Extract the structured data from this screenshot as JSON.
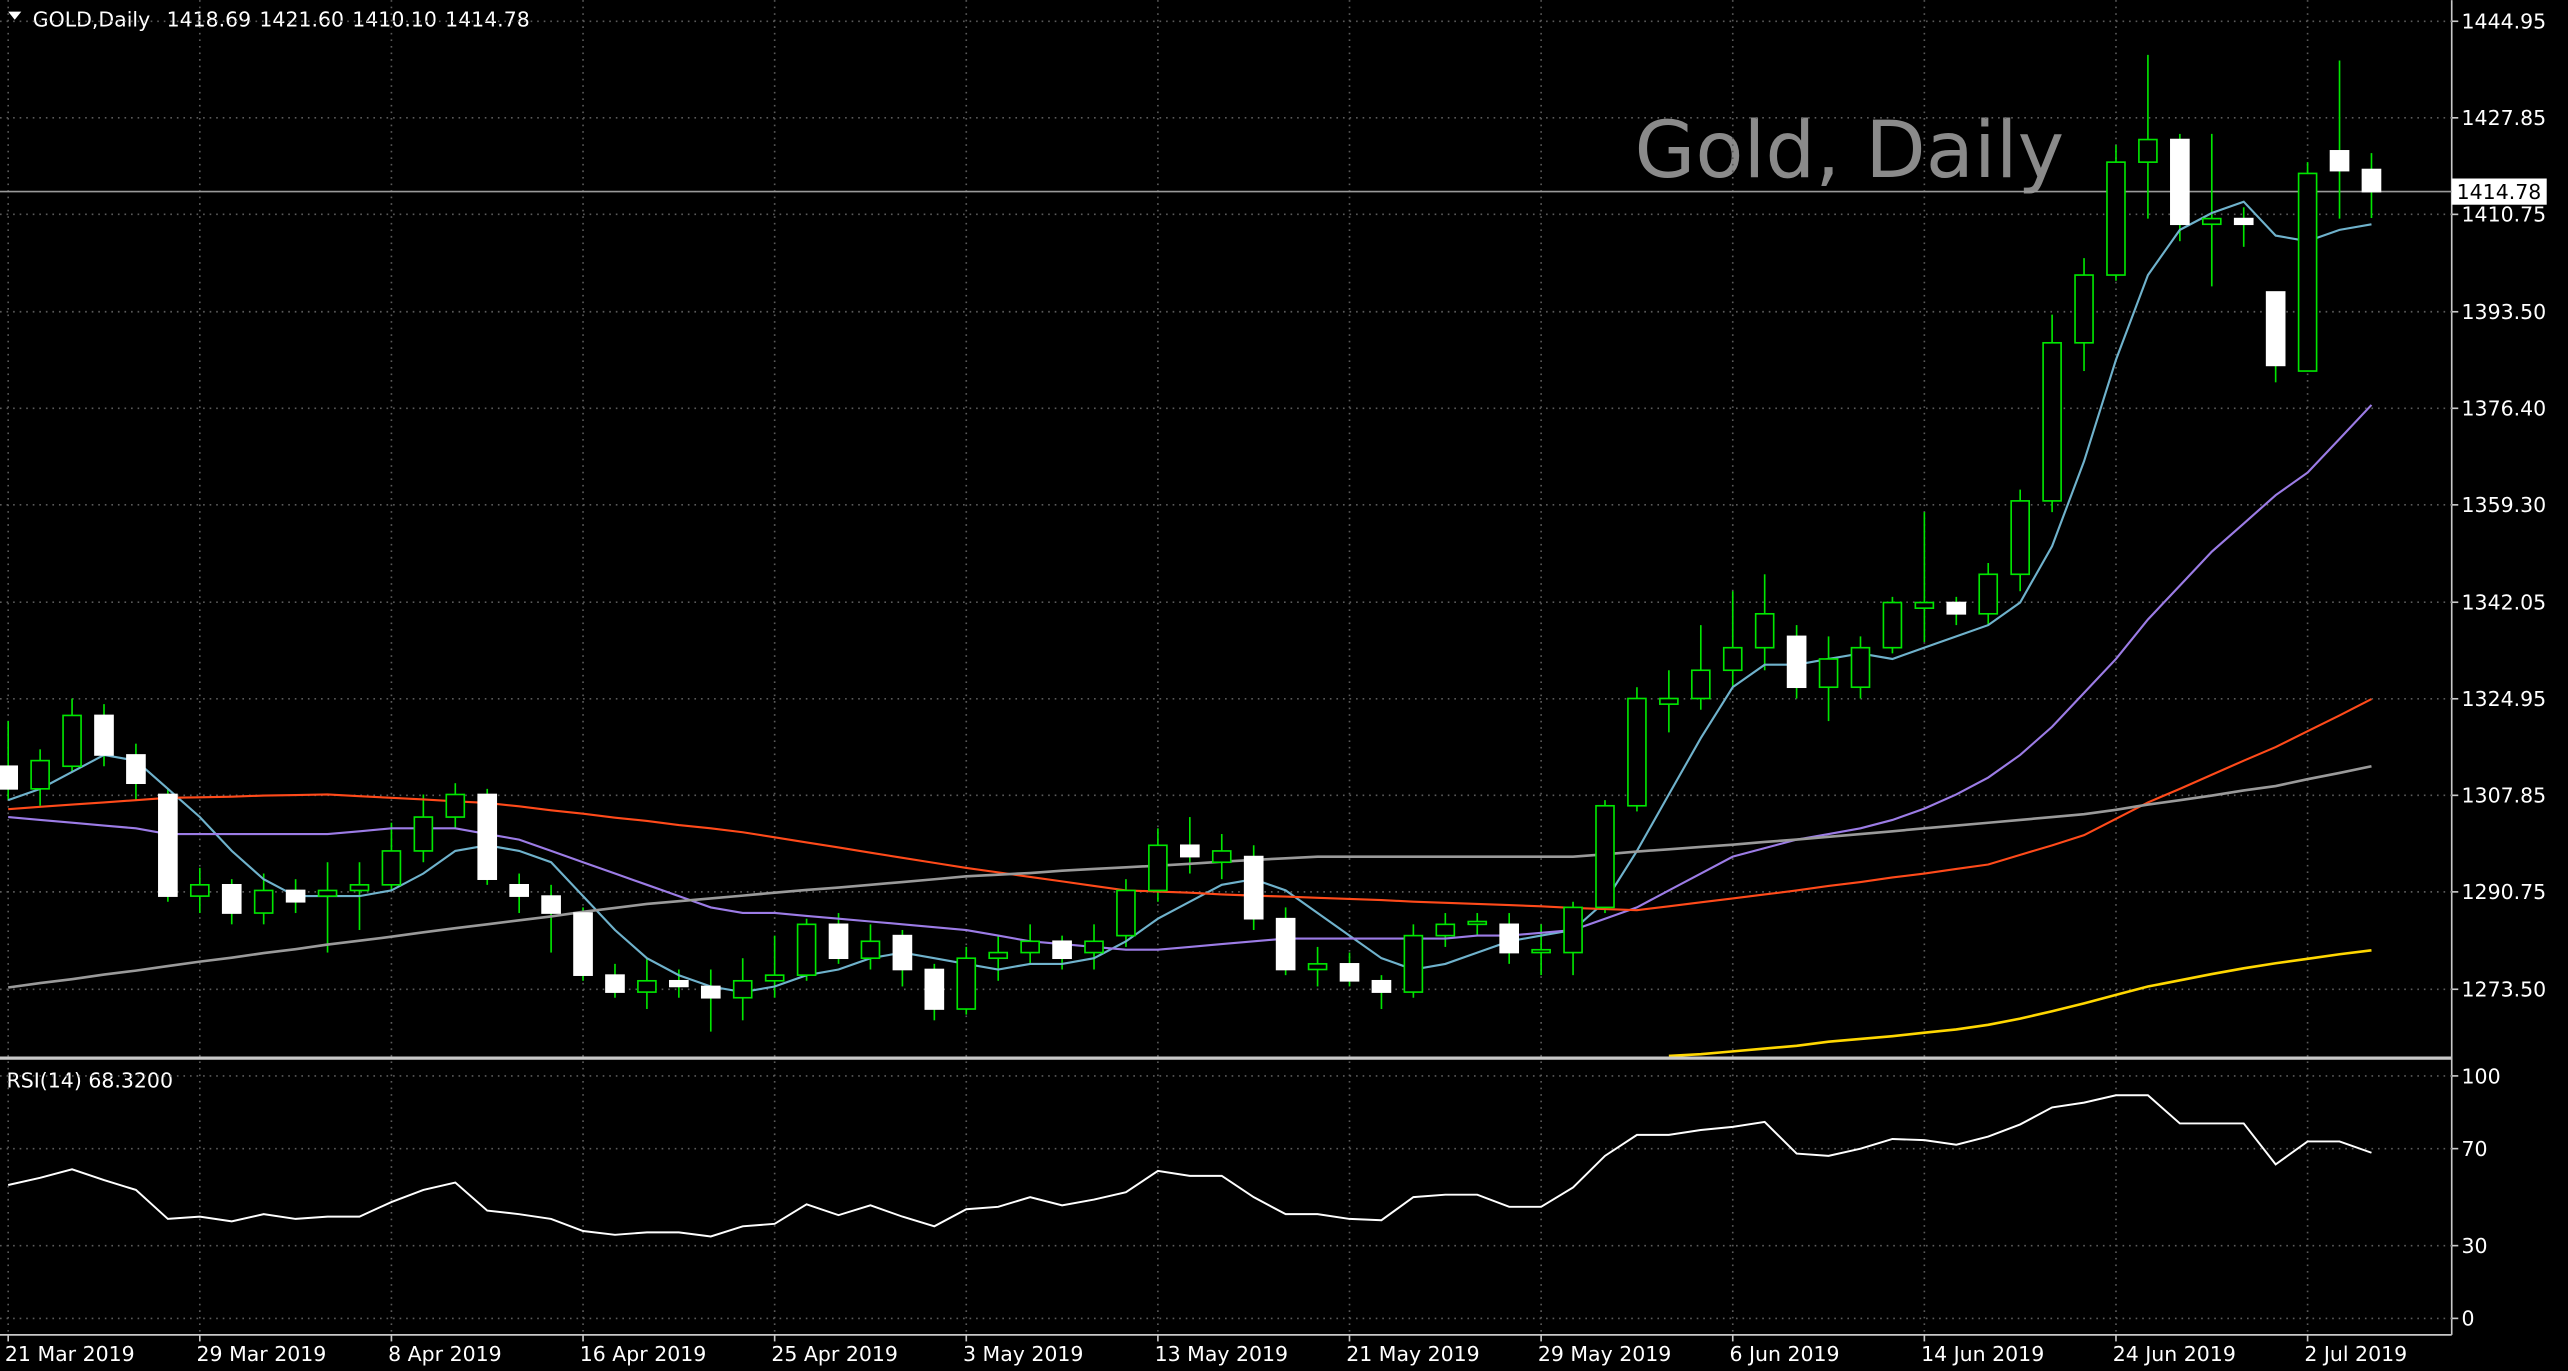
{
  "chart_data": {
    "type": "candlestick",
    "header_label": "GOLD,Daily",
    "header_values": [
      1418.69,
      {
        "value": 1421.6,
        "label": "1421.60"
      },
      {
        "value": 1410.1,
        "label": "1410.10"
      },
      1414.78
    ],
    "title": "Gold, Daily",
    "current_price": 1414.78,
    "categories": [
      "21 Mar 2019",
      null,
      null,
      null,
      null,
      null,
      "29 Mar 2019",
      null,
      null,
      null,
      null,
      null,
      "8 Apr 2019",
      null,
      null,
      null,
      null,
      null,
      "16 Apr 2019",
      null,
      null,
      null,
      null,
      null,
      "25 Apr 2019",
      null,
      null,
      null,
      null,
      null,
      "3 May 2019",
      null,
      null,
      null,
      null,
      null,
      "13 May 2019",
      null,
      null,
      null,
      null,
      null,
      "21 May 2019",
      null,
      null,
      null,
      null,
      null,
      "29 May 2019",
      null,
      null,
      null,
      null,
      null,
      "6 Jun 2019",
      null,
      null,
      null,
      null,
      null,
      "14 Jun 2019",
      null,
      null,
      null,
      null,
      null,
      "24 Jun 2019",
      null,
      null,
      null,
      null,
      null,
      "2 Jul 2019",
      null,
      null
    ],
    "open": [
      1313,
      1309,
      1313,
      1322,
      1315,
      1308,
      1290,
      1292,
      1287,
      1291,
      1290,
      1291,
      1292,
      1298,
      1304,
      1308,
      1292,
      1290,
      1287,
      1276,
      1273,
      1275,
      1274,
      1272,
      1275,
      1276,
      1285,
      1279,
      1283,
      1277,
      1270,
      1279,
      1280,
      1282,
      1280,
      1283,
      1291,
      1299,
      1296,
      1297,
      1286,
      1277,
      1278,
      1275,
      1273,
      1283,
      1285,
      1285,
      1280,
      1280,
      1288,
      1306,
      1324,
      1325,
      1330,
      1334,
      1336,
      1327,
      1327,
      1334,
      1341,
      1342,
      1340,
      1347,
      1360,
      1388,
      1400,
      1420,
      1424,
      1409,
      1410,
      1397,
      1383,
      1422,
      1418.69
    ],
    "high": [
      1321,
      1316,
      1325,
      1324,
      1317,
      1309,
      1295,
      1293,
      1294,
      1293,
      1296,
      1296,
      1303,
      1308,
      1310,
      1309,
      1294,
      1292,
      1288,
      1278,
      1279,
      1277,
      1277,
      1279,
      1283,
      1286,
      1287,
      1285,
      1284,
      1278,
      1281,
      1283,
      1285,
      1283,
      1285,
      1293,
      1302,
      1304,
      1301,
      1299,
      1288,
      1281,
      1280,
      1276,
      1285,
      1287,
      1287,
      1287,
      1285,
      1289,
      1307,
      1327,
      1330,
      1338,
      1344,
      1347,
      1338,
      1336,
      1336,
      1343,
      1358,
      1343,
      1349,
      1362,
      1393,
      1403,
      1423,
      1439,
      1425,
      1425,
      1412,
      1397,
      1420,
      1438,
      1421.6
    ],
    "low": [
      1307,
      1306,
      1312,
      1313,
      1307,
      1289,
      1287,
      1285,
      1285,
      1287,
      1280,
      1284,
      1291,
      1296,
      1302,
      1292,
      1287,
      1280,
      1275,
      1272,
      1270,
      1272,
      1266,
      1268,
      1272,
      1275,
      1278,
      1277,
      1274,
      1268,
      1269,
      1275,
      1278,
      1277,
      1277,
      1281,
      1289,
      1294,
      1293,
      1284,
      1276,
      1274,
      1274,
      1270,
      1272,
      1281,
      1283,
      1278,
      1276,
      1276,
      1287,
      1305,
      1319,
      1323,
      1327,
      1330,
      1325,
      1321,
      1325,
      1333,
      1335,
      1338,
      1338,
      1344,
      1358,
      1383,
      1399,
      1410,
      1406,
      1398,
      1405,
      1381,
      1383,
      1410,
      1410.1
    ],
    "close": [
      1309,
      1314,
      1322,
      1315,
      1310,
      1290,
      1292,
      1287,
      1291,
      1289,
      1291,
      1292,
      1298,
      1304,
      1308,
      1293,
      1290,
      1287,
      1276,
      1273,
      1275,
      1274,
      1272,
      1275,
      1276,
      1285,
      1279,
      1282,
      1277,
      1270,
      1279,
      1280,
      1282,
      1279,
      1282,
      1291,
      1299,
      1297,
      1298,
      1286,
      1277,
      1278,
      1275,
      1273,
      1283,
      1285,
      1285.5,
      1280,
      1280.5,
      1288,
      1306,
      1325,
      1325,
      1330,
      1334,
      1340,
      1327,
      1332,
      1334,
      1342,
      1342,
      1340,
      1347,
      1360,
      1388,
      1400,
      1420,
      1424,
      1409,
      1410,
      1409,
      1384,
      1418,
      1418.5,
      1414.78
    ],
    "bull_color": "#00e600",
    "bear_color": "#ffffff",
    "ylim": [
      1261.6,
      1448.7
    ],
    "yticks": [
      1444.95,
      1427.85,
      1410.75,
      {
        "value": 1393.5,
        "label": "1393.50"
      },
      {
        "value": 1376.4,
        "label": "1376.40"
      },
      {
        "value": 1359.3,
        "label": "1359.30"
      },
      1342.05,
      1324.95,
      1307.85,
      1290.75,
      {
        "value": 1273.5,
        "label": "1273.50"
      }
    ],
    "grid": true,
    "lines": [
      {
        "color": "#6fb2cc",
        "values": [
          1307,
          1309,
          1312,
          1315,
          1314,
          1309,
          1304,
          1298,
          1293,
          1290,
          1290,
          1290,
          1291,
          1294,
          1298,
          1299,
          1298,
          1296,
          1290,
          1284,
          1279,
          1276,
          1274,
          1273,
          1274,
          1276,
          1277,
          1279,
          1280,
          1279,
          1278,
          1277,
          1278,
          1278,
          1279,
          1282,
          1286,
          1289,
          1292,
          1293,
          1291,
          1287,
          1283,
          1279,
          1277,
          1278,
          1280,
          1282,
          1283,
          1284,
          1289,
          1298,
          1308,
          1318,
          1327,
          1331,
          1331,
          1332,
          1333,
          1332,
          1334,
          1336,
          1338,
          1342,
          1352,
          1367,
          1385,
          1400,
          1408,
          1411,
          1413,
          1407,
          1406,
          1408,
          1409
        ]
      },
      {
        "color": "#9c7ce6",
        "values": [
          1304,
          1303.5,
          1303,
          1302.5,
          1302,
          1301,
          1301,
          1301,
          1301,
          1301,
          1301,
          1301.5,
          1302,
          1302,
          1302,
          1301,
          1300,
          1298,
          1296,
          1294,
          1292,
          1290,
          1288,
          1287,
          1287,
          1286.5,
          1286,
          1285.5,
          1285,
          1284.5,
          1284,
          1283,
          1282,
          1281.5,
          1281,
          1280.5,
          1280.5,
          1281,
          1281.5,
          1282,
          1282.5,
          1282.5,
          1282.5,
          1282.5,
          1282.5,
          1282.5,
          1283,
          1283,
          1283.5,
          1284,
          1286,
          1288,
          1291,
          1294,
          1297,
          1298.5,
          1300,
          1301,
          1302,
          1303.5,
          1305.5,
          1308,
          1311,
          1315,
          1320,
          1326,
          1332,
          1339,
          1345,
          1351,
          1356,
          1361,
          1365,
          1371,
          1377
        ]
      },
      {
        "color": "#ff4a1a",
        "values": [
          1305.4,
          1305.8,
          1306.2,
          1306.6,
          1307,
          1307.4,
          1307.5,
          1307.6,
          1307.8,
          1307.9,
          1308,
          1307.7,
          1307.4,
          1307.1,
          1306.8,
          1306.5,
          1305.9,
          1305.2,
          1304.6,
          1303.9,
          1303.3,
          1302.6,
          1302,
          1301.3,
          1300.4,
          1299.5,
          1298.6,
          1297.7,
          1296.8,
          1295.9,
          1295,
          1294.2,
          1293.4,
          1292.6,
          1291.8,
          1291,
          1290.8,
          1290.6,
          1290.3,
          1290.1,
          1289.9,
          1289.7,
          1289.5,
          1289.3,
          1289,
          1288.8,
          1288.6,
          1288.4,
          1288.2,
          1287.9,
          1287.7,
          1287.5,
          1288.2,
          1288.9,
          1289.6,
          1290.3,
          1291,
          1291.8,
          1292.5,
          1293.3,
          1294,
          1294.8,
          1295.6,
          1297.3,
          1299,
          1300.8,
          1303.7,
          1306.6,
          1309,
          1311.5,
          1314,
          1316.4,
          1319.2,
          1322,
          1324.9
        ]
      },
      {
        "color": "#9a9a9a",
        "values": [
          1273.8,
          1274.6,
          1275.3,
          1276.1,
          1276.8,
          1277.6,
          1278.4,
          1279.1,
          1279.9,
          1280.6,
          1281.4,
          1282.1,
          1282.8,
          1283.6,
          1284.3,
          1285,
          1285.7,
          1286.4,
          1287.2,
          1287.9,
          1288.6,
          1289.1,
          1289.6,
          1290.1,
          1290.6,
          1291.1,
          1291.5,
          1292,
          1292.5,
          1293,
          1293.5,
          1293.8,
          1294.1,
          1294.5,
          1294.8,
          1295.1,
          1295.4,
          1295.7,
          1296.1,
          1296.4,
          1296.7,
          1297,
          1297,
          1297,
          1297,
          1297,
          1297,
          1297,
          1297,
          1297,
          1297.4,
          1297.9,
          1298.3,
          1298.7,
          1299.1,
          1299.6,
          1300,
          1300.5,
          1301,
          1301.5,
          1302,
          1302.5,
          1303,
          1303.5,
          1304,
          1304.5,
          1305.3,
          1306.2,
          1307,
          1307.8,
          1308.7,
          1309.5,
          1310.7,
          1311.8,
          1313
        ]
      },
      {
        "color": "#ffd700",
        "values": [
          null,
          null,
          null,
          null,
          null,
          null,
          null,
          null,
          null,
          null,
          null,
          null,
          null,
          null,
          null,
          null,
          null,
          null,
          null,
          null,
          null,
          null,
          null,
          null,
          null,
          null,
          null,
          null,
          null,
          null,
          null,
          null,
          null,
          null,
          null,
          null,
          null,
          null,
          null,
          null,
          null,
          null,
          null,
          null,
          null,
          null,
          null,
          null,
          null,
          null,
          null,
          null,
          1261.7,
          1262,
          1262.5,
          1263,
          1263.5,
          1264.2,
          1264.7,
          1265.2,
          1265.8,
          1266.4,
          1267.2,
          1268.3,
          1269.6,
          1271,
          1272.5,
          1274,
          1275.1,
          1276.2,
          1277.2,
          1278.1,
          1278.9,
          1279.7,
          1280.4
        ]
      }
    ],
    "indicator": {
      "label": "RSI(14) 68.3200",
      "color": "#ffffff",
      "values": [
        55,
        58,
        61.5,
        57,
        53,
        41,
        42,
        40,
        43,
        41,
        42,
        42,
        48,
        53,
        56,
        44.5,
        43,
        41,
        36,
        34.5,
        35.5,
        35.5,
        33.8,
        38,
        39,
        47,
        42.6,
        46.6,
        42,
        38,
        45,
        46,
        50,
        46.6,
        49,
        52,
        60.8,
        58.8,
        58.8,
        50,
        43,
        43,
        41,
        40.5,
        50,
        51,
        51,
        46,
        46,
        54,
        67,
        75.7,
        75.7,
        77.7,
        79,
        81,
        68,
        67,
        70,
        74,
        73.5,
        71.6,
        75,
        80,
        87,
        89,
        92,
        92,
        80.4,
        80.4,
        80.4,
        63.5,
        73,
        73,
        68.32
      ],
      "ylim": [
        -6.8,
        106
      ],
      "yticks": [
        100,
        70,
        30,
        0
      ]
    }
  }
}
